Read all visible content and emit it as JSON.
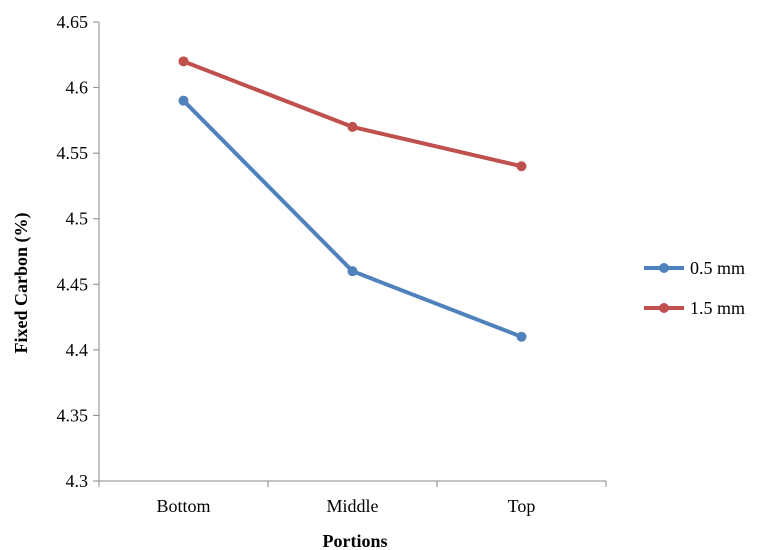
{
  "chart_data": {
    "type": "line",
    "categories": [
      "Bottom",
      "Middle",
      "Top"
    ],
    "series": [
      {
        "name": "0.5 mm",
        "values": [
          4.59,
          4.46,
          4.41
        ],
        "color": "#4F81BD"
      },
      {
        "name": "1.5 mm",
        "values": [
          4.62,
          4.57,
          4.54
        ],
        "color": "#C0504D"
      }
    ],
    "title": "",
    "xlabel": "Portions",
    "ylabel": "Fixed Carbon (%)",
    "ylim": [
      4.3,
      4.65
    ],
    "yticks": [
      "4.3",
      "4.35",
      "4.4",
      "4.45",
      "4.5",
      "4.55",
      "4.6",
      "4.65"
    ],
    "grid": false,
    "legend_position": "right"
  }
}
